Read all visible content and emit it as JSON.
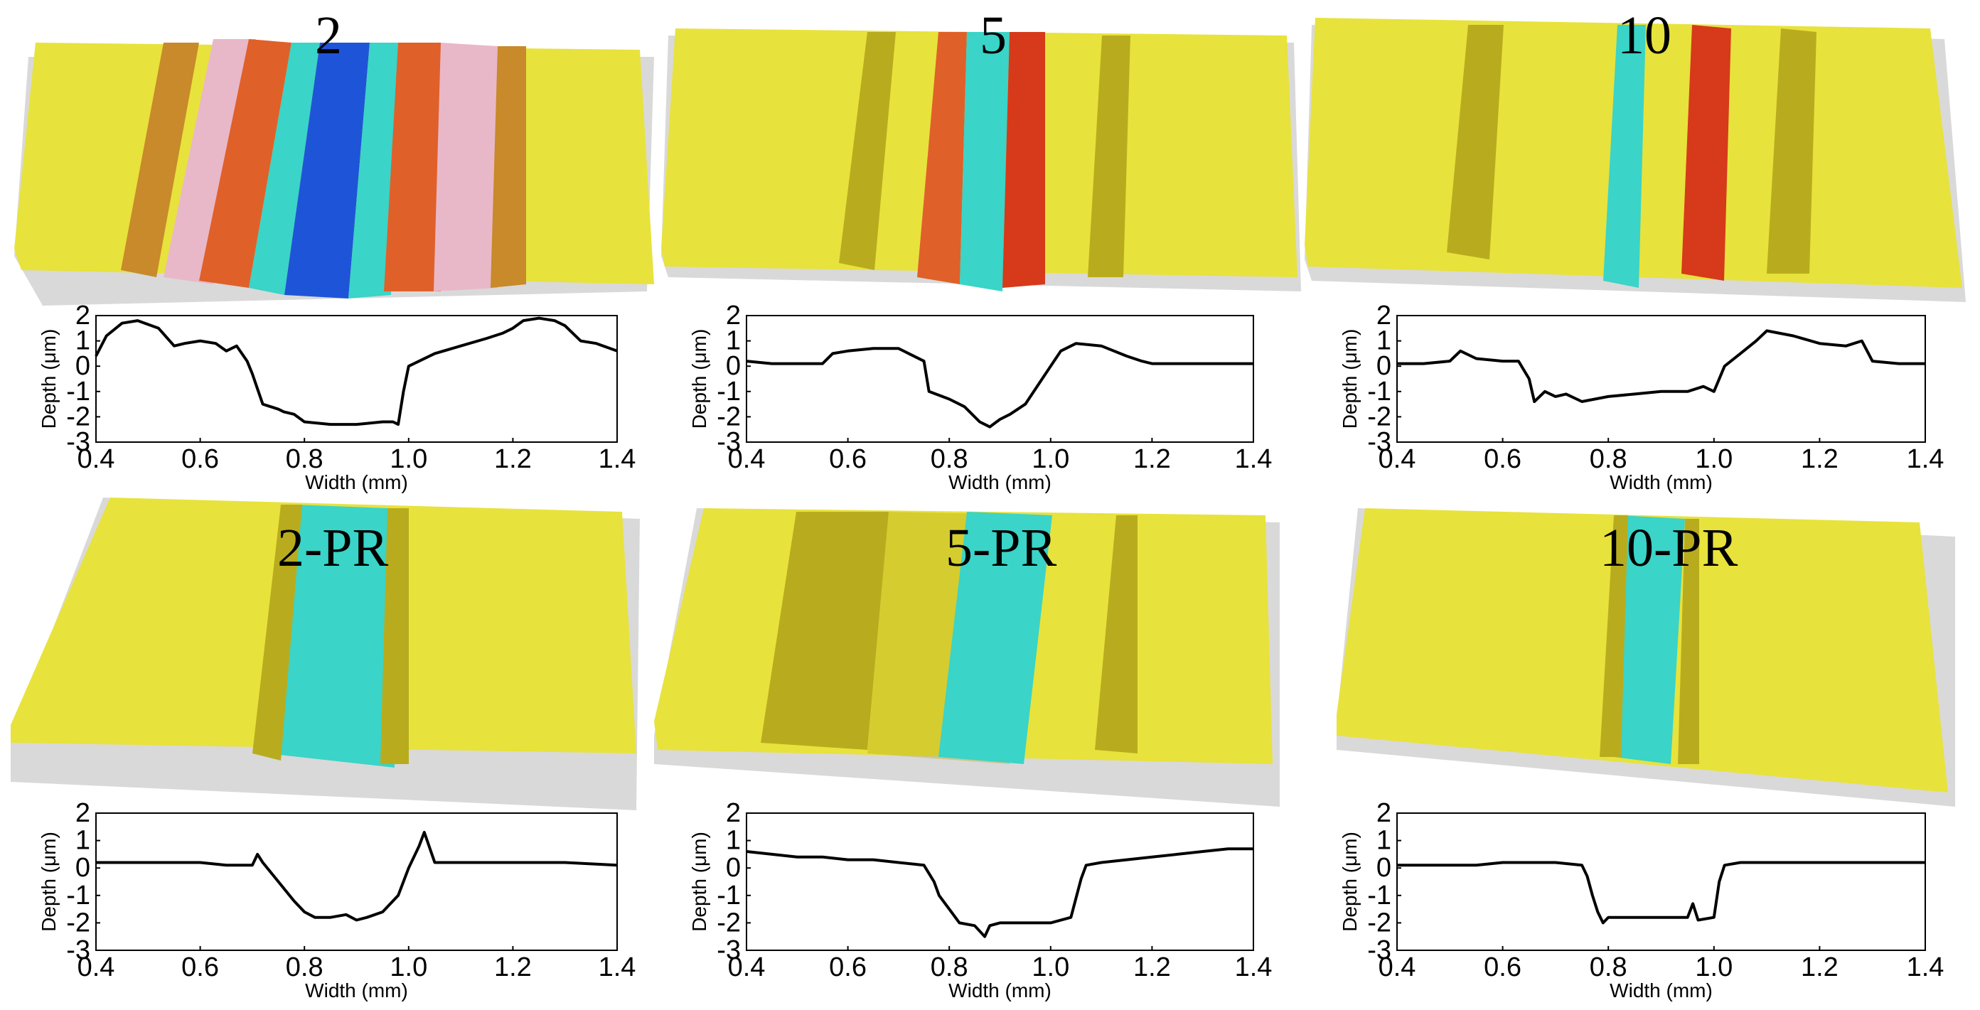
{
  "panels": [
    {
      "label": "2"
    },
    {
      "label": "5"
    },
    {
      "label": "10"
    },
    {
      "label": "2-PR"
    },
    {
      "label": "5-PR"
    },
    {
      "label": "10-PR"
    }
  ],
  "colors": {
    "surface_base": "#e8e23c",
    "surface_dark": "#b8ac1e",
    "orange": "#e0602a",
    "red": "#d63a1a",
    "blue": "#1e55d8",
    "cyan": "#3ad4c8",
    "pink": "#e8b8c8",
    "base_slab": "#d9d9d9"
  },
  "chart_data": [
    {
      "type": "line",
      "xlabel": "Width (mm)",
      "ylabel": "Depth (μm)",
      "xlim": [
        0.4,
        1.4
      ],
      "ylim": [
        -3,
        2
      ],
      "xticks": [
        "0.4",
        "0.6",
        "0.8",
        "1.0",
        "1.2",
        "1.4"
      ],
      "yticks": [
        "2",
        "1",
        "0",
        "-1",
        "-2",
        "-3"
      ],
      "x": [
        0.4,
        0.42,
        0.45,
        0.48,
        0.52,
        0.55,
        0.57,
        0.6,
        0.63,
        0.65,
        0.67,
        0.69,
        0.7,
        0.71,
        0.72,
        0.75,
        0.76,
        0.78,
        0.8,
        0.85,
        0.9,
        0.95,
        0.97,
        0.98,
        0.99,
        1.0,
        1.05,
        1.1,
        1.15,
        1.18,
        1.2,
        1.22,
        1.25,
        1.28,
        1.3,
        1.33,
        1.36,
        1.4
      ],
      "y": [
        0.4,
        1.2,
        1.7,
        1.8,
        1.5,
        0.8,
        0.9,
        1.0,
        0.9,
        0.6,
        0.8,
        0.2,
        -0.3,
        -0.9,
        -1.5,
        -1.7,
        -1.8,
        -1.9,
        -2.2,
        -2.3,
        -2.3,
        -2.2,
        -2.2,
        -2.3,
        -1.0,
        0.0,
        0.5,
        0.8,
        1.1,
        1.3,
        1.5,
        1.8,
        1.9,
        1.8,
        1.6,
        1.0,
        0.9,
        0.6
      ]
    },
    {
      "type": "line",
      "xlabel": "Width (mm)",
      "ylabel": "Depth (μm)",
      "xlim": [
        0.4,
        1.4
      ],
      "ylim": [
        -3,
        2
      ],
      "xticks": [
        "0.4",
        "0.6",
        "0.8",
        "1.0",
        "1.2",
        "1.4"
      ],
      "yticks": [
        "2",
        "1",
        "0",
        "-1",
        "-2",
        "-3"
      ],
      "x": [
        0.4,
        0.45,
        0.5,
        0.55,
        0.57,
        0.6,
        0.65,
        0.7,
        0.72,
        0.75,
        0.76,
        0.8,
        0.83,
        0.86,
        0.88,
        0.9,
        0.92,
        0.95,
        0.98,
        1.0,
        1.02,
        1.05,
        1.1,
        1.15,
        1.18,
        1.2,
        1.25,
        1.3,
        1.4
      ],
      "y": [
        0.2,
        0.1,
        0.1,
        0.1,
        0.5,
        0.6,
        0.7,
        0.7,
        0.5,
        0.2,
        -1.0,
        -1.3,
        -1.6,
        -2.2,
        -2.4,
        -2.1,
        -1.9,
        -1.5,
        -0.6,
        0.0,
        0.6,
        0.9,
        0.8,
        0.4,
        0.2,
        0.1,
        0.1,
        0.1,
        0.1
      ]
    },
    {
      "type": "line",
      "xlabel": "Width (mm)",
      "ylabel": "Depth (μm)",
      "xlim": [
        0.4,
        1.4
      ],
      "ylim": [
        -3,
        2
      ],
      "xticks": [
        "0.4",
        "0.6",
        "0.8",
        "1.0",
        "1.2",
        "1.4"
      ],
      "yticks": [
        "2",
        "1",
        "0",
        "-1",
        "-2",
        "-3"
      ],
      "x": [
        0.4,
        0.45,
        0.5,
        0.52,
        0.55,
        0.6,
        0.63,
        0.65,
        0.66,
        0.68,
        0.7,
        0.72,
        0.75,
        0.8,
        0.85,
        0.9,
        0.95,
        0.98,
        1.0,
        1.02,
        1.05,
        1.08,
        1.1,
        1.15,
        1.2,
        1.25,
        1.28,
        1.3,
        1.35,
        1.4
      ],
      "y": [
        0.1,
        0.1,
        0.2,
        0.6,
        0.3,
        0.2,
        0.2,
        -0.5,
        -1.4,
        -1.0,
        -1.2,
        -1.1,
        -1.4,
        -1.2,
        -1.1,
        -1.0,
        -1.0,
        -0.8,
        -1.0,
        0.0,
        0.5,
        1.0,
        1.4,
        1.2,
        0.9,
        0.8,
        1.0,
        0.2,
        0.1,
        0.1
      ]
    },
    {
      "type": "line",
      "xlabel": "Width (mm)",
      "ylabel": "Depth (μm)",
      "xlim": [
        0.4,
        1.4
      ],
      "ylim": [
        -3,
        2
      ],
      "xticks": [
        "0.4",
        "0.6",
        "0.8",
        "1.0",
        "1.2",
        "1.4"
      ],
      "yticks": [
        "2",
        "1",
        "0",
        "-1",
        "-2",
        "-3"
      ],
      "x": [
        0.4,
        0.45,
        0.5,
        0.55,
        0.6,
        0.65,
        0.7,
        0.71,
        0.72,
        0.75,
        0.78,
        0.8,
        0.82,
        0.85,
        0.88,
        0.9,
        0.92,
        0.95,
        0.98,
        1.0,
        1.02,
        1.03,
        1.05,
        1.1,
        1.2,
        1.3,
        1.4
      ],
      "y": [
        0.2,
        0.2,
        0.2,
        0.2,
        0.2,
        0.1,
        0.1,
        0.5,
        0.2,
        -0.5,
        -1.2,
        -1.6,
        -1.8,
        -1.8,
        -1.7,
        -1.9,
        -1.8,
        -1.6,
        -1.0,
        0.0,
        0.8,
        1.3,
        0.2,
        0.2,
        0.2,
        0.2,
        0.1
      ]
    },
    {
      "type": "line",
      "xlabel": "Width (mm)",
      "ylabel": "Depth (μm)",
      "xlim": [
        0.4,
        1.4
      ],
      "ylim": [
        -3,
        2
      ],
      "xticks": [
        "0.4",
        "0.6",
        "0.8",
        "1.0",
        "1.2",
        "1.4"
      ],
      "yticks": [
        "2",
        "1",
        "0",
        "-1",
        "-2",
        "-3"
      ],
      "x": [
        0.4,
        0.45,
        0.5,
        0.55,
        0.6,
        0.65,
        0.7,
        0.75,
        0.77,
        0.78,
        0.8,
        0.82,
        0.85,
        0.87,
        0.88,
        0.9,
        0.93,
        0.95,
        1.0,
        1.04,
        1.06,
        1.07,
        1.1,
        1.15,
        1.2,
        1.25,
        1.3,
        1.35,
        1.4
      ],
      "y": [
        0.6,
        0.5,
        0.4,
        0.4,
        0.3,
        0.3,
        0.2,
        0.1,
        -0.5,
        -1.0,
        -1.5,
        -2.0,
        -2.1,
        -2.5,
        -2.1,
        -2.0,
        -2.0,
        -2.0,
        -2.0,
        -1.8,
        -0.4,
        0.1,
        0.2,
        0.3,
        0.4,
        0.5,
        0.6,
        0.7,
        0.7
      ]
    },
    {
      "type": "line",
      "xlabel": "Width (mm)",
      "ylabel": "Depth (μm)",
      "xlim": [
        0.4,
        1.4
      ],
      "ylim": [
        -3,
        2
      ],
      "xticks": [
        "0.4",
        "0.6",
        "0.8",
        "1.0",
        "1.2",
        "1.4"
      ],
      "yticks": [
        "2",
        "1",
        "0",
        "-1",
        "-2",
        "-3"
      ],
      "x": [
        0.4,
        0.45,
        0.5,
        0.55,
        0.6,
        0.65,
        0.7,
        0.75,
        0.76,
        0.77,
        0.78,
        0.79,
        0.8,
        0.85,
        0.9,
        0.95,
        0.96,
        0.97,
        1.0,
        1.01,
        1.02,
        1.05,
        1.1,
        1.2,
        1.3,
        1.4
      ],
      "y": [
        0.1,
        0.1,
        0.1,
        0.1,
        0.2,
        0.2,
        0.2,
        0.1,
        -0.3,
        -1.0,
        -1.6,
        -2.0,
        -1.8,
        -1.8,
        -1.8,
        -1.8,
        -1.3,
        -1.9,
        -1.8,
        -0.5,
        0.1,
        0.2,
        0.2,
        0.2,
        0.2,
        0.2
      ]
    }
  ]
}
